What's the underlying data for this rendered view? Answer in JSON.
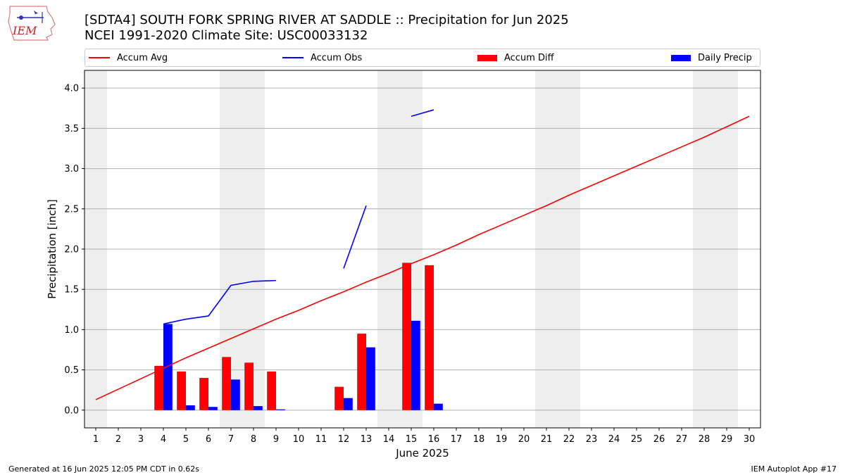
{
  "header": {
    "title_line1": "[SDTA4] SOUTH FORK SPRING RIVER AT SADDLE :: Precipitation for Jun 2025",
    "title_line2": "NCEI 1991-2020 Climate Site: USC00033132",
    "logo_text": "IEM"
  },
  "legend": [
    {
      "label": "Accum Avg",
      "kind": "line",
      "color": "#ff0000"
    },
    {
      "label": "Accum Obs",
      "kind": "line",
      "color": "#0000ff"
    },
    {
      "label": "Accum Diff",
      "kind": "bar",
      "color": "#ff0000"
    },
    {
      "label": "Daily Precip",
      "kind": "bar",
      "color": "#0000ff"
    }
  ],
  "footer": {
    "left": "Generated at 16 Jun 2025 12:05 PM CDT in 0.62s",
    "right": "IEM Autoplot App #17"
  },
  "chart_data": {
    "type": "bar",
    "xlabel": "June 2025",
    "ylabel": "Precipitation [inch]",
    "xlim": [
      0.5,
      30.5
    ],
    "ylim": [
      -0.22,
      4.22
    ],
    "yticks": [
      0.0,
      0.5,
      1.0,
      1.5,
      2.0,
      2.5,
      3.0,
      3.5,
      4.0
    ],
    "ytick_labels": [
      "0.0",
      "0.5",
      "1.0",
      "1.5",
      "2.0",
      "2.5",
      "3.0",
      "3.5",
      "4.0"
    ],
    "x": [
      1,
      2,
      3,
      4,
      5,
      6,
      7,
      8,
      9,
      10,
      11,
      12,
      13,
      14,
      15,
      16,
      17,
      18,
      19,
      20,
      21,
      22,
      23,
      24,
      25,
      26,
      27,
      28,
      29,
      30
    ],
    "x_labels": [
      "1",
      "2",
      "3",
      "4",
      "5",
      "6",
      "7",
      "8",
      "9",
      "10",
      "11",
      "12",
      "13",
      "14",
      "15",
      "16",
      "17",
      "18",
      "19",
      "20",
      "21",
      "22",
      "23",
      "24",
      "25",
      "26",
      "27",
      "28",
      "29",
      "30"
    ],
    "grid": "horizontal",
    "legend_position": "top",
    "weekend_shading": [
      [
        0.5,
        1.5
      ],
      [
        6.5,
        8.5
      ],
      [
        13.5,
        15.5
      ],
      [
        20.5,
        22.5
      ],
      [
        27.5,
        29.5
      ]
    ],
    "shading_color": "#eeeeee",
    "series": [
      {
        "name": "Accum Avg",
        "type": "line",
        "color": "#ff0000",
        "values": [
          0.13,
          0.26,
          0.39,
          0.52,
          0.65,
          0.77,
          0.89,
          1.01,
          1.13,
          1.24,
          1.36,
          1.47,
          1.59,
          1.7,
          1.82,
          1.93,
          2.05,
          2.18,
          2.3,
          2.42,
          2.54,
          2.67,
          2.79,
          2.91,
          3.03,
          3.15,
          3.27,
          3.39,
          3.52,
          3.65
        ]
      },
      {
        "name": "Accum Obs",
        "type": "line",
        "color": "#0000ff",
        "values": [
          null,
          null,
          null,
          1.07,
          1.13,
          1.17,
          1.55,
          1.6,
          1.61,
          null,
          null,
          1.76,
          2.54,
          null,
          3.65,
          3.73,
          null,
          null,
          null,
          null,
          null,
          null,
          null,
          null,
          null,
          null,
          null,
          null,
          null,
          null
        ]
      },
      {
        "name": "Accum Diff",
        "type": "bar",
        "color": "#ff0000",
        "values": [
          null,
          null,
          null,
          0.55,
          0.48,
          0.4,
          0.66,
          0.59,
          0.48,
          null,
          null,
          0.29,
          0.95,
          null,
          1.83,
          1.8,
          null,
          null,
          null,
          null,
          null,
          null,
          null,
          null,
          null,
          null,
          null,
          null,
          null,
          null
        ]
      },
      {
        "name": "Daily Precip",
        "type": "bar",
        "color": "#0000ff",
        "values": [
          null,
          null,
          null,
          1.07,
          0.06,
          0.04,
          0.38,
          0.05,
          0.01,
          null,
          null,
          0.15,
          0.78,
          null,
          1.11,
          0.08,
          null,
          null,
          null,
          null,
          null,
          null,
          null,
          null,
          null,
          null,
          null,
          null,
          null,
          null
        ]
      }
    ]
  }
}
